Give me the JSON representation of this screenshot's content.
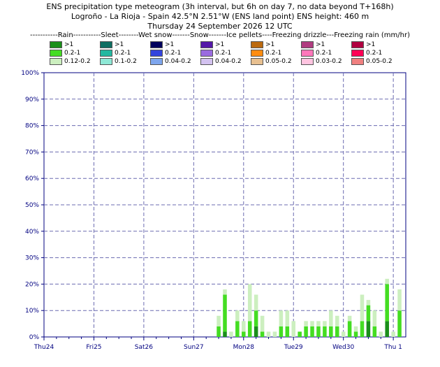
{
  "title": {
    "line1": "ENS precipitation type meteogram (3h interval, but 6h on day 7, no data beyond T+168h)",
    "line2": "Logroño - La Rioja - Spain 42.5°N 2.51°W (ENS land point) ENS height: 460 m",
    "line3": "Thursday 24 September 2026 12 UTC"
  },
  "legend": {
    "header": "-----------Rain-----------Sleet--------Wet snow-------Snow-------Ice pellets----Freezing drizzle---Freezing rain (mm/hr)",
    "columns": [
      {
        "name": "Rain",
        "items": [
          {
            "label": ">1",
            "color": "#1a8f1a"
          },
          {
            "label": "0.2-1",
            "color": "#44dd22"
          },
          {
            "label": "0.12-0.2",
            "color": "#ccefbf"
          }
        ]
      },
      {
        "name": "Sleet",
        "items": [
          {
            "label": ">1",
            "color": "#0f6e62"
          },
          {
            "label": "0.2-1",
            "color": "#22b8a0"
          },
          {
            "label": "0.1-0.2",
            "color": "#8ee8d6"
          }
        ]
      },
      {
        "name": "Wet snow",
        "items": [
          {
            "label": ">1",
            "color": "#00005c"
          },
          {
            "label": "0.2-1",
            "color": "#3344dd"
          },
          {
            "label": "0.04-0.2",
            "color": "#7ea6ee"
          }
        ]
      },
      {
        "name": "Snow",
        "items": [
          {
            "label": ">1",
            "color": "#5418a8"
          },
          {
            "label": "0.2-1",
            "color": "#9a6be0"
          },
          {
            "label": "0.04-0.2",
            "color": "#d3c2f0"
          }
        ]
      },
      {
        "name": "Ice pellets",
        "items": [
          {
            "label": ">1",
            "color": "#bb6a10"
          },
          {
            "label": "0.2-1",
            "color": "#ff8c10"
          },
          {
            "label": "0.05-0.2",
            "color": "#e8c090"
          }
        ]
      },
      {
        "name": "Freezing drizzle",
        "items": [
          {
            "label": ">1",
            "color": "#b03c80"
          },
          {
            "label": "0.2-1",
            "color": "#ff77bb"
          },
          {
            "label": "0.03-0.2",
            "color": "#ffc4e0"
          }
        ]
      },
      {
        "name": "Freezing rain",
        "items": [
          {
            "label": ">1",
            "color": "#b00040"
          },
          {
            "label": "0.2-1",
            "color": "#ff0055"
          },
          {
            "label": "0.05-0.2",
            "color": "#f08080"
          }
        ]
      }
    ]
  },
  "chart_data": {
    "type": "bar",
    "stacked": true,
    "x_unit": "hours since base time (T+)",
    "xlim": [
      0,
      174
    ],
    "ylim": [
      0,
      100
    ],
    "y_ticks": [
      0,
      10,
      20,
      30,
      40,
      50,
      60,
      70,
      80,
      90,
      100
    ],
    "y_tick_labels": [
      "0%",
      "10%",
      "20%",
      "30%",
      "40%",
      "50%",
      "60%",
      "70%",
      "80%",
      "90%",
      "100%"
    ],
    "grid": true,
    "x_day_labels": [
      {
        "t": 0,
        "label": "Thu24",
        "color": "#000080"
      },
      {
        "t": 24,
        "label": "Fri25",
        "color": "#000080"
      },
      {
        "t": 48,
        "label": "Sat26",
        "color": "#000080"
      },
      {
        "t": 72,
        "label": "Sun27",
        "color": "#cc0000"
      },
      {
        "t": 96,
        "label": "Mon28",
        "color": "#000080"
      },
      {
        "t": 120,
        "label": "Tue29",
        "color": "#000080"
      },
      {
        "t": 144,
        "label": "Wed30",
        "color": "#000080"
      },
      {
        "t": 168,
        "label": "Thu 1",
        "color": "#000080"
      }
    ],
    "series": [
      {
        "name": "Rain >1",
        "color": "#1a8f1a",
        "x": [
          87,
          102,
          156,
          165
        ],
        "values": [
          2,
          4,
          6,
          6
        ]
      },
      {
        "name": "Rain 0.2-1",
        "color": "#44dd22",
        "x": [
          84,
          87,
          93,
          96,
          99,
          102,
          105,
          114,
          117,
          123,
          126,
          129,
          132,
          135,
          138,
          141,
          147,
          150,
          153,
          156,
          159,
          165,
          171
        ],
        "values": [
          4,
          14,
          6,
          2,
          6,
          6,
          2,
          4,
          4,
          2,
          4,
          4,
          4,
          4,
          4,
          4,
          6,
          2,
          6,
          6,
          4,
          14,
          10
        ]
      },
      {
        "name": "Rain 0.12-0.2",
        "color": "#ccefbf",
        "x": [
          84,
          87,
          90,
          93,
          96,
          99,
          102,
          105,
          108,
          111,
          114,
          117,
          120,
          126,
          129,
          132,
          135,
          138,
          141,
          144,
          147,
          150,
          153,
          156,
          159,
          162,
          165,
          168,
          171
        ],
        "values": [
          4,
          2,
          2,
          4,
          4,
          14,
          6,
          6,
          2,
          2,
          6,
          6,
          6,
          2,
          2,
          2,
          2,
          6,
          4,
          2,
          2,
          2,
          10,
          2,
          6,
          2,
          2,
          2,
          8
        ]
      }
    ]
  }
}
